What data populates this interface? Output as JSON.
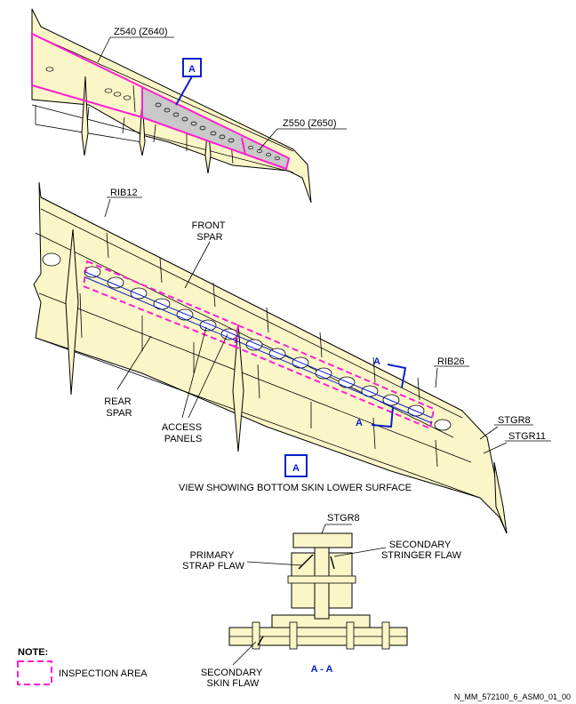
{
  "colors": {
    "wing_fill": "#fbf6c8",
    "inspection": "#ff1fd0",
    "view_blue": "#0b20c8",
    "panel_grey": "#c8c8c8"
  },
  "top_view": {
    "zone_label_1": "Z540 (Z640)",
    "zone_label_2": "Z550 (Z650)",
    "view_marker": "A"
  },
  "main_view": {
    "rib_inner": "RIB12",
    "rib_outer": "RIB26",
    "front_spar": [
      "FRONT",
      "SPAR"
    ],
    "rear_spar": [
      "REAR",
      "SPAR"
    ],
    "access_panels": [
      "ACCESS",
      "PANELS"
    ],
    "stringer_a": "STGR8",
    "stringer_b": "STGR11",
    "section_mark": "A",
    "view_marker": "A",
    "caption": "VIEW SHOWING BOTTOM SKIN LOWER SURFACE"
  },
  "section": {
    "stringer": "STGR8",
    "primary": [
      "PRIMARY",
      "STRAP FLAW"
    ],
    "secondary_stringer": [
      "SECONDARY",
      "STRINGER FLAW"
    ],
    "secondary_skin": [
      "SECONDARY",
      "SKIN FLAW"
    ],
    "title": "A - A"
  },
  "note": {
    "heading": "NOTE:",
    "legend": "INSPECTION AREA"
  },
  "figure_id": "N_MM_572100_6_ASM0_01_00"
}
